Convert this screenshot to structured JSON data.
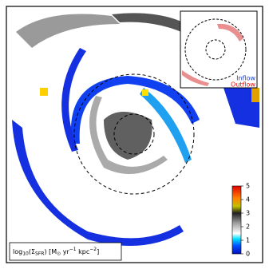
{
  "chart_data": {
    "type": "heatmap",
    "colorbar": {
      "clim": [
        0,
        5
      ],
      "ticks": [
        0,
        1,
        2,
        3,
        4,
        5
      ]
    },
    "label_parts": [
      "log",
      "10",
      "(Σ",
      "SFR",
      ") [M",
      "⊙",
      " yr",
      "−1",
      " kpc",
      "−2",
      "]"
    ],
    "inset_legend": [
      {
        "name": "Inflow",
        "color": "#1f3fd0"
      },
      {
        "name": "Outflow",
        "color": "#e01010"
      }
    ]
  }
}
